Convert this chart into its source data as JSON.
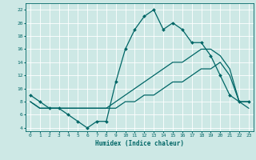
{
  "xlabel": "Humidex (Indice chaleur)",
  "xlim": [
    -0.5,
    23.5
  ],
  "ylim": [
    3.5,
    23
  ],
  "yticks": [
    4,
    6,
    8,
    10,
    12,
    14,
    16,
    18,
    20,
    22
  ],
  "xticks": [
    0,
    1,
    2,
    3,
    4,
    5,
    6,
    7,
    8,
    9,
    10,
    11,
    12,
    13,
    14,
    15,
    16,
    17,
    18,
    19,
    20,
    21,
    22,
    23
  ],
  "bg_color": "#cde8e5",
  "grid_color": "#ffffff",
  "line_color": "#006666",
  "line1_x": [
    0,
    1,
    2,
    3,
    4,
    5,
    6,
    7,
    8,
    9,
    10,
    11,
    12,
    13,
    14,
    15,
    16,
    17,
    18,
    19,
    20,
    21,
    22,
    23
  ],
  "line1_y": [
    9,
    8,
    7,
    7,
    6,
    5,
    4,
    5,
    5,
    11,
    16,
    19,
    21,
    22,
    19,
    20,
    19,
    17,
    17,
    15,
    12,
    9,
    8,
    8
  ],
  "line2_x": [
    0,
    1,
    2,
    3,
    4,
    5,
    6,
    7,
    8,
    9,
    10,
    11,
    12,
    13,
    14,
    15,
    16,
    17,
    18,
    19,
    20,
    21,
    22,
    23
  ],
  "line2_y": [
    8,
    7,
    7,
    7,
    7,
    7,
    7,
    7,
    7,
    8,
    9,
    10,
    11,
    12,
    13,
    14,
    14,
    15,
    16,
    16,
    15,
    13,
    8,
    8
  ],
  "line3_x": [
    0,
    1,
    2,
    3,
    4,
    5,
    6,
    7,
    8,
    9,
    10,
    11,
    12,
    13,
    14,
    15,
    16,
    17,
    18,
    19,
    20,
    21,
    22,
    23
  ],
  "line3_y": [
    8,
    7,
    7,
    7,
    7,
    7,
    7,
    7,
    7,
    7,
    8,
    8,
    9,
    9,
    10,
    11,
    11,
    12,
    13,
    13,
    14,
    12,
    8,
    7
  ]
}
